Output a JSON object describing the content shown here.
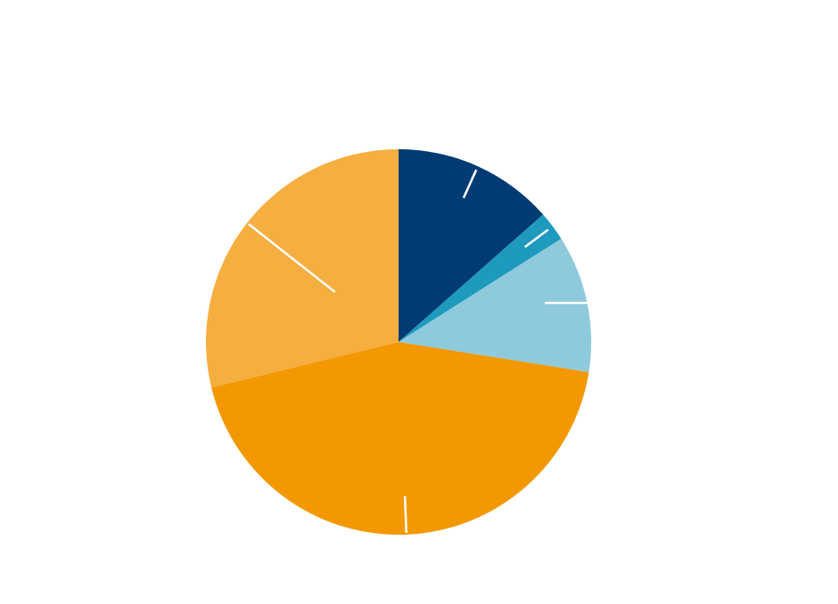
{
  "chart_data": {
    "type": "pie",
    "title": "",
    "start_angle": "12 o'clock",
    "direction": "clockwise",
    "slices": [
      {
        "label": "",
        "value": 13.5,
        "color": "#003b73"
      },
      {
        "label": "",
        "value": 2.5,
        "color": "#1e9abf"
      },
      {
        "label": "",
        "value": 11.5,
        "color": "#8ecadb"
      },
      {
        "label": "",
        "value": 43.7,
        "color": "#f39800"
      },
      {
        "label": "",
        "value": 28.8,
        "color": "#f5ae40"
      }
    ],
    "leader_line_color": "#ffffff"
  }
}
